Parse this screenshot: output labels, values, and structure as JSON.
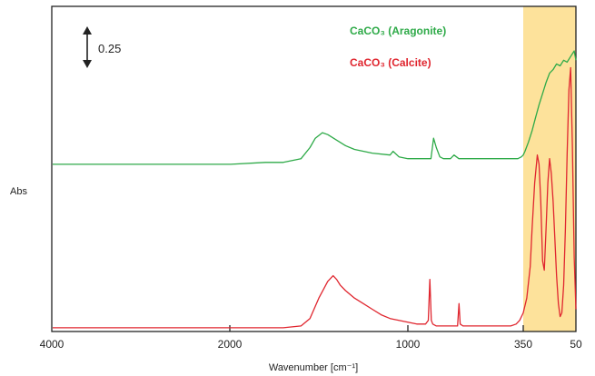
{
  "chart_data": {
    "type": "line",
    "title": "",
    "xlabel": "Wavenumber [cm⁻¹]",
    "ylabel": "Abs",
    "x_ticks": [
      "4000",
      "2000",
      "1000",
      "350",
      "50"
    ],
    "x_range": [
      4000,
      50
    ],
    "y_range": [
      0,
      1.75
    ],
    "grid": false,
    "legend_position": "top-center-right",
    "scale_bar": {
      "label": "0.25",
      "value": 0.25
    },
    "highlight_band": {
      "from": 350,
      "to": 50,
      "color": "#fde29b"
    },
    "series": [
      {
        "name": "CaCO₃ (Aragonite)",
        "color": "#2eaa48",
        "x": [
          3990,
          3500,
          3000,
          2500,
          2000,
          1800,
          1700,
          1600,
          1550,
          1520,
          1480,
          1450,
          1400,
          1350,
          1300,
          1200,
          1100,
          1083,
          1050,
          1000,
          950,
          900,
          870,
          855,
          840,
          820,
          800,
          760,
          740,
          713,
          700,
          650,
          600,
          500,
          420,
          400,
          380,
          360,
          350,
          340,
          320,
          300,
          280,
          260,
          240,
          220,
          200,
          180,
          160,
          140,
          120,
          100,
          80,
          60,
          50
        ],
        "y": [
          0.9,
          0.9,
          0.9,
          0.9,
          0.9,
          0.91,
          0.91,
          0.93,
          0.99,
          1.04,
          1.07,
          1.06,
          1.03,
          1.0,
          0.98,
          0.96,
          0.95,
          0.97,
          0.94,
          0.93,
          0.93,
          0.93,
          0.93,
          1.04,
          0.99,
          0.94,
          0.93,
          0.93,
          0.95,
          0.93,
          0.93,
          0.93,
          0.93,
          0.93,
          0.93,
          0.93,
          0.93,
          0.94,
          0.95,
          0.97,
          1.02,
          1.08,
          1.15,
          1.22,
          1.28,
          1.34,
          1.39,
          1.41,
          1.44,
          1.43,
          1.46,
          1.45,
          1.48,
          1.51,
          1.46
        ]
      },
      {
        "name": "CaCO₃ (Calcite)",
        "color": "#e0262f",
        "x": [
          3990,
          3500,
          3000,
          2500,
          2000,
          1800,
          1700,
          1600,
          1550,
          1500,
          1450,
          1420,
          1400,
          1380,
          1350,
          1300,
          1250,
          1200,
          1150,
          1100,
          1050,
          1000,
          950,
          900,
          885,
          876,
          868,
          860,
          840,
          800,
          760,
          720,
          712,
          705,
          690,
          650,
          600,
          500,
          420,
          390,
          370,
          350,
          330,
          310,
          300,
          285,
          270,
          260,
          250,
          240,
          230,
          220,
          210,
          200,
          190,
          180,
          170,
          160,
          150,
          140,
          130,
          120,
          110,
          100,
          90,
          80,
          70,
          60,
          50
        ],
        "y": [
          0.02,
          0.02,
          0.02,
          0.02,
          0.02,
          0.02,
          0.02,
          0.03,
          0.07,
          0.18,
          0.27,
          0.3,
          0.28,
          0.25,
          0.22,
          0.18,
          0.15,
          0.12,
          0.09,
          0.07,
          0.06,
          0.05,
          0.04,
          0.04,
          0.06,
          0.28,
          0.06,
          0.04,
          0.03,
          0.03,
          0.03,
          0.03,
          0.15,
          0.04,
          0.03,
          0.03,
          0.03,
          0.03,
          0.03,
          0.04,
          0.06,
          0.1,
          0.18,
          0.35,
          0.55,
          0.8,
          0.95,
          0.9,
          0.7,
          0.38,
          0.33,
          0.55,
          0.8,
          0.93,
          0.85,
          0.7,
          0.5,
          0.3,
          0.15,
          0.08,
          0.1,
          0.25,
          0.55,
          0.95,
          1.3,
          1.42,
          1.0,
          0.4,
          0.12
        ]
      }
    ]
  }
}
